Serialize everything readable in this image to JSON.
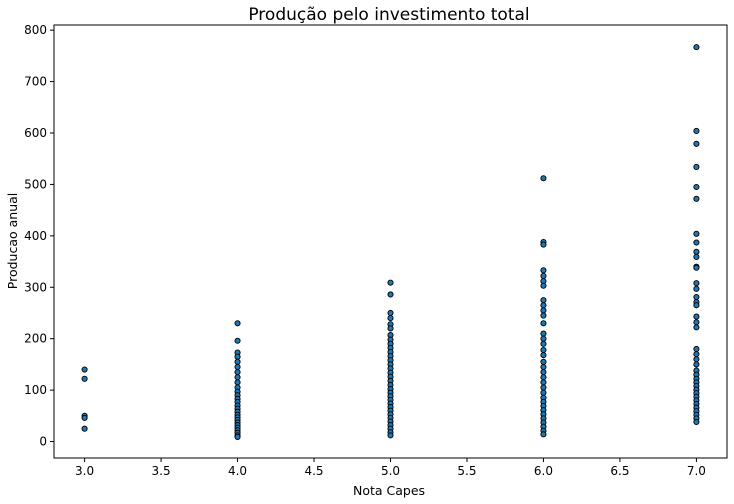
{
  "chart_data": {
    "type": "scatter",
    "title": "Produção pelo investimento total",
    "xlabel": "Nota Capes",
    "ylabel": "Producao anual",
    "xlim": [
      2.8,
      7.2
    ],
    "ylim": [
      -32,
      810
    ],
    "xticks": [
      "3.0",
      "3.5",
      "4.0",
      "4.5",
      "5.0",
      "5.5",
      "6.0",
      "6.5",
      "7.0"
    ],
    "xtick_values": [
      3.0,
      3.5,
      4.0,
      4.5,
      5.0,
      5.5,
      6.0,
      6.5,
      7.0
    ],
    "yticks": [
      "0",
      "100",
      "200",
      "300",
      "400",
      "500",
      "600",
      "700",
      "800"
    ],
    "ytick_values": [
      0,
      100,
      200,
      300,
      400,
      500,
      600,
      700,
      800
    ],
    "grid": false,
    "marker_color": "#1f77b4",
    "marker_edge_color": "#000000",
    "points": [
      {
        "x": 3.0,
        "y": 140
      },
      {
        "x": 3.0,
        "y": 122
      },
      {
        "x": 3.0,
        "y": 50
      },
      {
        "x": 3.0,
        "y": 46
      },
      {
        "x": 3.0,
        "y": 25
      },
      {
        "x": 4.0,
        "y": 230
      },
      {
        "x": 4.0,
        "y": 196
      },
      {
        "x": 4.0,
        "y": 173
      },
      {
        "x": 4.0,
        "y": 165
      },
      {
        "x": 4.0,
        "y": 155
      },
      {
        "x": 4.0,
        "y": 145
      },
      {
        "x": 4.0,
        "y": 135
      },
      {
        "x": 4.0,
        "y": 125
      },
      {
        "x": 4.0,
        "y": 115
      },
      {
        "x": 4.0,
        "y": 105
      },
      {
        "x": 4.0,
        "y": 97
      },
      {
        "x": 4.0,
        "y": 90
      },
      {
        "x": 4.0,
        "y": 83
      },
      {
        "x": 4.0,
        "y": 77
      },
      {
        "x": 4.0,
        "y": 70
      },
      {
        "x": 4.0,
        "y": 64
      },
      {
        "x": 4.0,
        "y": 58
      },
      {
        "x": 4.0,
        "y": 52
      },
      {
        "x": 4.0,
        "y": 47
      },
      {
        "x": 4.0,
        "y": 42
      },
      {
        "x": 4.0,
        "y": 37
      },
      {
        "x": 4.0,
        "y": 32
      },
      {
        "x": 4.0,
        "y": 27
      },
      {
        "x": 4.0,
        "y": 22
      },
      {
        "x": 4.0,
        "y": 17
      },
      {
        "x": 4.0,
        "y": 12
      },
      {
        "x": 4.0,
        "y": 9
      },
      {
        "x": 5.0,
        "y": 309
      },
      {
        "x": 5.0,
        "y": 286
      },
      {
        "x": 5.0,
        "y": 250
      },
      {
        "x": 5.0,
        "y": 240
      },
      {
        "x": 5.0,
        "y": 228
      },
      {
        "x": 5.0,
        "y": 220
      },
      {
        "x": 5.0,
        "y": 207
      },
      {
        "x": 5.0,
        "y": 198
      },
      {
        "x": 5.0,
        "y": 190
      },
      {
        "x": 5.0,
        "y": 182
      },
      {
        "x": 5.0,
        "y": 174
      },
      {
        "x": 5.0,
        "y": 166
      },
      {
        "x": 5.0,
        "y": 158
      },
      {
        "x": 5.0,
        "y": 150
      },
      {
        "x": 5.0,
        "y": 142
      },
      {
        "x": 5.0,
        "y": 134
      },
      {
        "x": 5.0,
        "y": 126
      },
      {
        "x": 5.0,
        "y": 118
      },
      {
        "x": 5.0,
        "y": 110
      },
      {
        "x": 5.0,
        "y": 102
      },
      {
        "x": 5.0,
        "y": 95
      },
      {
        "x": 5.0,
        "y": 88
      },
      {
        "x": 5.0,
        "y": 81
      },
      {
        "x": 5.0,
        "y": 74
      },
      {
        "x": 5.0,
        "y": 67
      },
      {
        "x": 5.0,
        "y": 60
      },
      {
        "x": 5.0,
        "y": 53
      },
      {
        "x": 5.0,
        "y": 46
      },
      {
        "x": 5.0,
        "y": 39
      },
      {
        "x": 5.0,
        "y": 32
      },
      {
        "x": 5.0,
        "y": 25
      },
      {
        "x": 5.0,
        "y": 18
      },
      {
        "x": 5.0,
        "y": 12
      },
      {
        "x": 6.0,
        "y": 512
      },
      {
        "x": 6.0,
        "y": 388
      },
      {
        "x": 6.0,
        "y": 383
      },
      {
        "x": 6.0,
        "y": 333
      },
      {
        "x": 6.0,
        "y": 322
      },
      {
        "x": 6.0,
        "y": 312
      },
      {
        "x": 6.0,
        "y": 303
      },
      {
        "x": 6.0,
        "y": 275
      },
      {
        "x": 6.0,
        "y": 265
      },
      {
        "x": 6.0,
        "y": 255
      },
      {
        "x": 6.0,
        "y": 245
      },
      {
        "x": 6.0,
        "y": 230
      },
      {
        "x": 6.0,
        "y": 210
      },
      {
        "x": 6.0,
        "y": 200
      },
      {
        "x": 6.0,
        "y": 190
      },
      {
        "x": 6.0,
        "y": 178
      },
      {
        "x": 6.0,
        "y": 168
      },
      {
        "x": 6.0,
        "y": 155
      },
      {
        "x": 6.0,
        "y": 145
      },
      {
        "x": 6.0,
        "y": 135
      },
      {
        "x": 6.0,
        "y": 125
      },
      {
        "x": 6.0,
        "y": 115
      },
      {
        "x": 6.0,
        "y": 105
      },
      {
        "x": 6.0,
        "y": 95
      },
      {
        "x": 6.0,
        "y": 85
      },
      {
        "x": 6.0,
        "y": 77
      },
      {
        "x": 6.0,
        "y": 69
      },
      {
        "x": 6.0,
        "y": 61
      },
      {
        "x": 6.0,
        "y": 53
      },
      {
        "x": 6.0,
        "y": 45
      },
      {
        "x": 6.0,
        "y": 37
      },
      {
        "x": 6.0,
        "y": 29
      },
      {
        "x": 6.0,
        "y": 21
      },
      {
        "x": 6.0,
        "y": 14
      },
      {
        "x": 7.0,
        "y": 767
      },
      {
        "x": 7.0,
        "y": 604
      },
      {
        "x": 7.0,
        "y": 579
      },
      {
        "x": 7.0,
        "y": 534
      },
      {
        "x": 7.0,
        "y": 495
      },
      {
        "x": 7.0,
        "y": 472
      },
      {
        "x": 7.0,
        "y": 404
      },
      {
        "x": 7.0,
        "y": 387
      },
      {
        "x": 7.0,
        "y": 369
      },
      {
        "x": 7.0,
        "y": 359
      },
      {
        "x": 7.0,
        "y": 340
      },
      {
        "x": 7.0,
        "y": 338
      },
      {
        "x": 7.0,
        "y": 308
      },
      {
        "x": 7.0,
        "y": 297
      },
      {
        "x": 7.0,
        "y": 281
      },
      {
        "x": 7.0,
        "y": 271
      },
      {
        "x": 7.0,
        "y": 265
      },
      {
        "x": 7.0,
        "y": 243
      },
      {
        "x": 7.0,
        "y": 232
      },
      {
        "x": 7.0,
        "y": 222
      },
      {
        "x": 7.0,
        "y": 180
      },
      {
        "x": 7.0,
        "y": 170
      },
      {
        "x": 7.0,
        "y": 160
      },
      {
        "x": 7.0,
        "y": 150
      },
      {
        "x": 7.0,
        "y": 138
      },
      {
        "x": 7.0,
        "y": 130
      },
      {
        "x": 7.0,
        "y": 122
      },
      {
        "x": 7.0,
        "y": 115
      },
      {
        "x": 7.0,
        "y": 108
      },
      {
        "x": 7.0,
        "y": 101
      },
      {
        "x": 7.0,
        "y": 94
      },
      {
        "x": 7.0,
        "y": 87
      },
      {
        "x": 7.0,
        "y": 80
      },
      {
        "x": 7.0,
        "y": 73
      },
      {
        "x": 7.0,
        "y": 66
      },
      {
        "x": 7.0,
        "y": 59
      },
      {
        "x": 7.0,
        "y": 52
      },
      {
        "x": 7.0,
        "y": 45
      },
      {
        "x": 7.0,
        "y": 38
      }
    ]
  }
}
